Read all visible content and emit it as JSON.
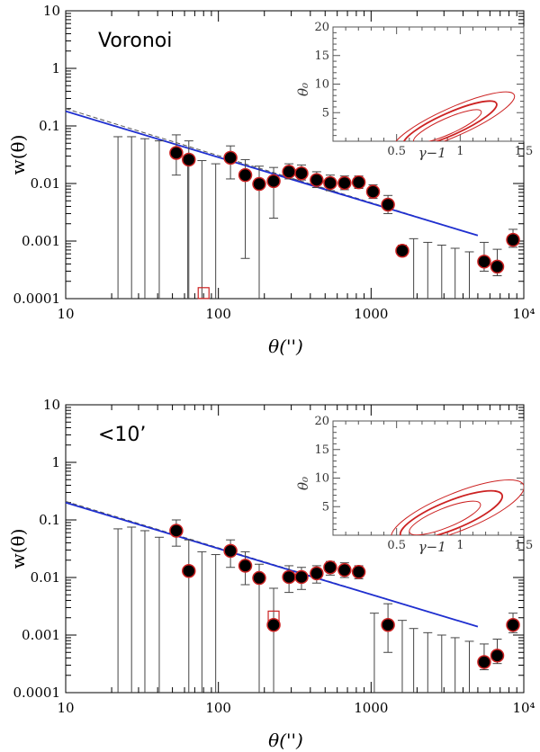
{
  "colors": {
    "marker_face": "#000000",
    "marker_edge": "#cc2222",
    "fit_solid": "#1f2fd0",
    "fit_dashed": "#555555",
    "errorbar": "#444444",
    "contour": "#cc2222"
  },
  "chart_data": [
    {
      "type": "scatter",
      "panel_label": "Voronoi",
      "xlabel": "θ('')",
      "ylabel": "w(θ)",
      "xscale": "log",
      "yscale": "log",
      "xlim": [
        10,
        10000
      ],
      "ylim": [
        0.0001,
        10
      ],
      "x_tick_labels": [
        "10",
        "100",
        "1000",
        "10⁴"
      ],
      "y_tick_labels": [
        "0.0001",
        "0.001",
        "0.01",
        "0.1",
        "1",
        "10"
      ],
      "points": [
        {
          "x": 53,
          "y": 0.034,
          "lo": 0.014,
          "hi": 0.07
        },
        {
          "x": 64,
          "y": 0.026,
          "lo": 0.0001,
          "hi": 0.055
        },
        {
          "x": 120,
          "y": 0.028,
          "lo": 0.012,
          "hi": 0.045
        },
        {
          "x": 150,
          "y": 0.014,
          "lo": 0.0005,
          "hi": 0.026
        },
        {
          "x": 185,
          "y": 0.0098,
          "lo": 0.0001,
          "hi": 0.02
        },
        {
          "x": 230,
          "y": 0.011,
          "lo": 0.0025,
          "hi": 0.019
        },
        {
          "x": 290,
          "y": 0.016,
          "lo": 0.012,
          "hi": 0.022
        },
        {
          "x": 350,
          "y": 0.015,
          "lo": 0.0115,
          "hi": 0.021
        },
        {
          "x": 440,
          "y": 0.0115,
          "lo": 0.0085,
          "hi": 0.016
        },
        {
          "x": 540,
          "y": 0.0102,
          "lo": 0.0075,
          "hi": 0.014
        },
        {
          "x": 670,
          "y": 0.0102,
          "lo": 0.0078,
          "hi": 0.0135
        },
        {
          "x": 830,
          "y": 0.0105,
          "lo": 0.0082,
          "hi": 0.0135
        },
        {
          "x": 1030,
          "y": 0.0072,
          "lo": 0.0055,
          "hi": 0.0095
        },
        {
          "x": 1290,
          "y": 0.0043,
          "lo": 0.003,
          "hi": 0.0062
        },
        {
          "x": 1600,
          "y": 0.00068,
          "lo": 0.00055,
          "hi": 0.00085
        },
        {
          "x": 5500,
          "y": 0.00044,
          "lo": 0.0003,
          "hi": 0.00095
        },
        {
          "x": 6700,
          "y": 0.00036,
          "lo": 0.00025,
          "hi": 0.00072
        },
        {
          "x": 8500,
          "y": 0.00105,
          "lo": 0.00078,
          "hi": 0.0016
        }
      ],
      "upper_limits": [
        {
          "x": 22,
          "y": 0.065
        },
        {
          "x": 27,
          "y": 0.065
        },
        {
          "x": 33,
          "y": 0.06
        },
        {
          "x": 41,
          "y": 0.055
        },
        {
          "x": 63,
          "y": 0.03
        },
        {
          "x": 78,
          "y": 0.025
        },
        {
          "x": 96,
          "y": 0.022
        },
        {
          "x": 1900,
          "y": 0.0011
        },
        {
          "x": 2350,
          "y": 0.00095
        },
        {
          "x": 2900,
          "y": 0.00085
        },
        {
          "x": 3550,
          "y": 0.00075
        },
        {
          "x": 4400,
          "y": 0.00065
        }
      ],
      "open_squares": [
        {
          "x": 80,
          "y": 0.000125
        }
      ],
      "fit": {
        "x": [
          10,
          5000
        ],
        "y": [
          0.18,
          0.00125
        ]
      },
      "fit_dashed": {
        "x": [
          10,
          5000
        ],
        "y": [
          0.2,
          0.00125
        ]
      },
      "inset": {
        "xlabel": "γ−1",
        "ylabel": "θ₀",
        "xlim": [
          0,
          1.5
        ],
        "ylim": [
          0,
          20
        ],
        "x_tick_labels": [
          "0.5",
          "1",
          "1.5"
        ],
        "y_tick_labels": [
          "5",
          "10",
          "15",
          "20"
        ],
        "contours": [
          {
            "cx": 0.9,
            "cy": 2.6,
            "rx": 0.29,
            "ry": 1.4,
            "angle": -24
          },
          {
            "cx": 0.92,
            "cy": 3.0,
            "rx": 0.4,
            "ry": 1.95,
            "angle": -24
          },
          {
            "cx": 0.95,
            "cy": 3.4,
            "rx": 0.52,
            "ry": 2.5,
            "angle": -24
          }
        ]
      }
    },
    {
      "type": "scatter",
      "panel_label": "<10’",
      "xlabel": "θ('')",
      "ylabel": "w(θ)",
      "xscale": "log",
      "yscale": "log",
      "xlim": [
        10,
        10000
      ],
      "ylim": [
        0.0001,
        10
      ],
      "x_tick_labels": [
        "10",
        "100",
        "1000",
        "10⁴"
      ],
      "y_tick_labels": [
        "0.0001",
        "0.001",
        "0.01",
        "0.1",
        "1",
        "10"
      ],
      "points": [
        {
          "x": 53,
          "y": 0.065,
          "lo": 0.035,
          "hi": 0.1
        },
        {
          "x": 64,
          "y": 0.013,
          "lo": 0.0001,
          "hi": 0.045
        },
        {
          "x": 120,
          "y": 0.029,
          "lo": 0.015,
          "hi": 0.045
        },
        {
          "x": 150,
          "y": 0.016,
          "lo": 0.0075,
          "hi": 0.028
        },
        {
          "x": 185,
          "y": 0.0098,
          "lo": 0.0001,
          "hi": 0.017
        },
        {
          "x": 230,
          "y": 0.0015,
          "lo": 0.0001,
          "hi": 0.0065
        },
        {
          "x": 290,
          "y": 0.0102,
          "lo": 0.0055,
          "hi": 0.016
        },
        {
          "x": 350,
          "y": 0.0102,
          "lo": 0.0062,
          "hi": 0.015
        },
        {
          "x": 440,
          "y": 0.0118,
          "lo": 0.008,
          "hi": 0.016
        },
        {
          "x": 540,
          "y": 0.015,
          "lo": 0.011,
          "hi": 0.019
        },
        {
          "x": 670,
          "y": 0.0135,
          "lo": 0.01,
          "hi": 0.018
        },
        {
          "x": 830,
          "y": 0.0125,
          "lo": 0.0095,
          "hi": 0.016
        },
        {
          "x": 1290,
          "y": 0.0015,
          "lo": 0.0005,
          "hi": 0.0035
        },
        {
          "x": 5500,
          "y": 0.00034,
          "lo": 0.00025,
          "hi": 0.0007
        },
        {
          "x": 6700,
          "y": 0.00044,
          "lo": 0.00032,
          "hi": 0.00085
        },
        {
          "x": 8500,
          "y": 0.0015,
          "lo": 0.0011,
          "hi": 0.0024
        }
      ],
      "upper_limits": [
        {
          "x": 22,
          "y": 0.07
        },
        {
          "x": 27,
          "y": 0.075
        },
        {
          "x": 33,
          "y": 0.065
        },
        {
          "x": 41,
          "y": 0.05
        },
        {
          "x": 78,
          "y": 0.028
        },
        {
          "x": 96,
          "y": 0.025
        },
        {
          "x": 1050,
          "y": 0.0024
        },
        {
          "x": 1600,
          "y": 0.0018
        },
        {
          "x": 1900,
          "y": 0.0013
        },
        {
          "x": 2350,
          "y": 0.0011
        },
        {
          "x": 2900,
          "y": 0.001
        },
        {
          "x": 3550,
          "y": 0.0009
        },
        {
          "x": 4400,
          "y": 0.00078
        }
      ],
      "open_squares": [
        {
          "x": 230,
          "y": 0.0021
        }
      ],
      "fit": {
        "x": [
          10,
          5000
        ],
        "y": [
          0.2,
          0.0014
        ]
      },
      "fit_dashed": {
        "x": [
          10,
          5000
        ],
        "y": [
          0.21,
          0.0014
        ]
      },
      "inset": {
        "xlabel": "γ−1",
        "ylabel": "θ₀",
        "xlim": [
          0,
          1.5
        ],
        "ylim": [
          0,
          20
        ],
        "x_tick_labels": [
          "0.5",
          "1",
          "1.5"
        ],
        "y_tick_labels": [
          "5",
          "10",
          "15",
          "20"
        ],
        "contours": [
          {
            "cx": 0.88,
            "cy": 3.0,
            "rx": 0.3,
            "ry": 1.7,
            "angle": -22
          },
          {
            "cx": 0.93,
            "cy": 3.5,
            "rx": 0.43,
            "ry": 2.5,
            "angle": -22
          },
          {
            "cx": 0.98,
            "cy": 4.1,
            "rx": 0.56,
            "ry": 3.3,
            "angle": -22
          }
        ]
      }
    }
  ]
}
